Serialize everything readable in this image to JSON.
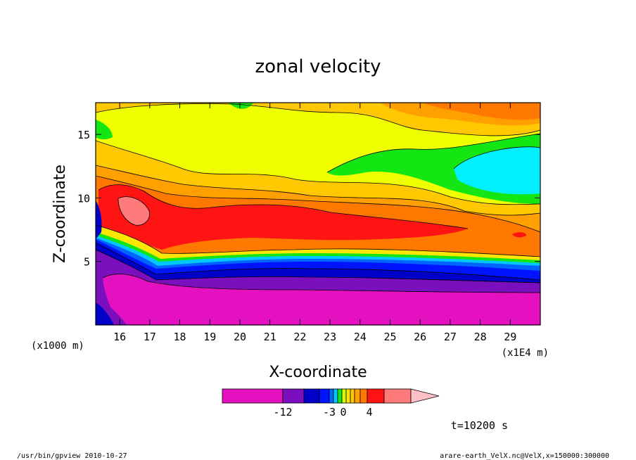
{
  "chart_data": {
    "type": "heatmap",
    "title": "zonal velocity",
    "xlabel": "X-coordinate",
    "ylabel": "Z-coordinate",
    "x_unit": "(x1E4 m)",
    "y_unit": "(x1000 m)",
    "xlim": [
      15.2,
      30.0
    ],
    "ylim": [
      0.0,
      17.5
    ],
    "x_ticks": [
      "16",
      "17",
      "18",
      "19",
      "20",
      "21",
      "22",
      "23",
      "24",
      "25",
      "26",
      "27",
      "28",
      "29"
    ],
    "y_ticks": [
      "5",
      "10",
      "15"
    ],
    "colorbar": {
      "colors": [
        "#e511c0",
        "#7c0fbd",
        "#0000c8",
        "#0014ff",
        "#0064ff",
        "#00c8ff",
        "#14e614",
        "#d2ff00",
        "#ffe600",
        "#ffc800",
        "#ffa000",
        "#ff7800",
        "#ff1414",
        "#ff7a7a",
        "#ffc0c8"
      ],
      "tick_labels": [
        "-12",
        "-3",
        "0",
        "4"
      ]
    },
    "time_label": "t=10200 s",
    "footer_left": "/usr/bin/gpview  2010-10-27",
    "footer_right": "arare-earth_VelX.nc@VelX,x=150000:300000",
    "grid": false
  }
}
